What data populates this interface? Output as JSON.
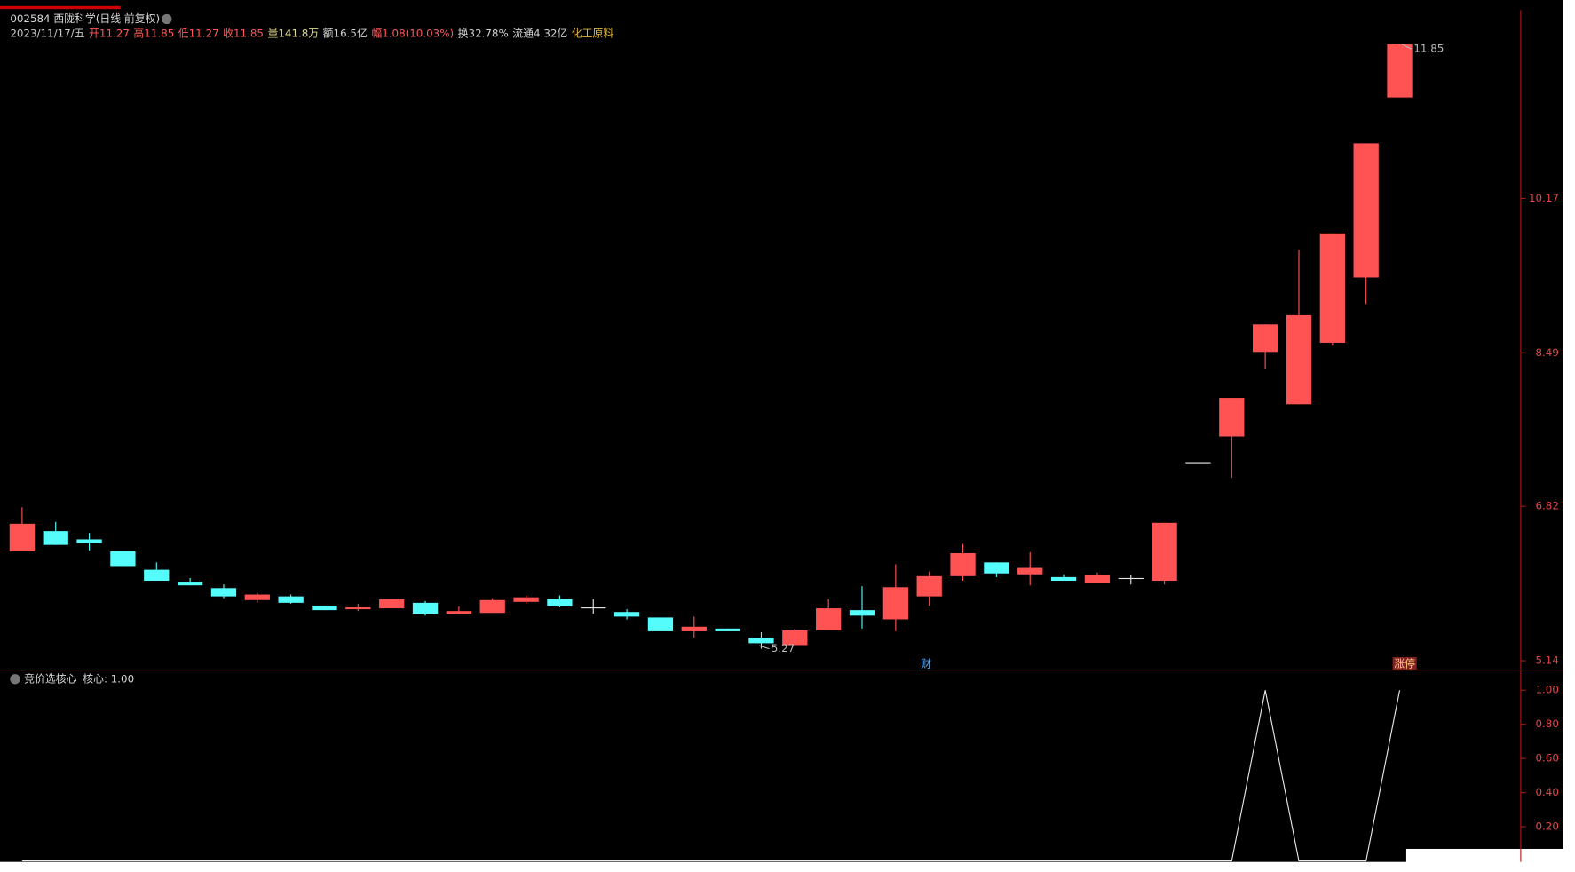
{
  "chart_data": [
    {
      "type": "candlestick",
      "title": "002584 西陇科学(日线 前复权)",
      "info": [
        {
          "text": "2023/11/17/五",
          "color": "#c8c8c8"
        },
        {
          "label": "开",
          "value": 11.27,
          "color": "#ff5a5a"
        },
        {
          "label": "高",
          "value": 11.85,
          "color": "#ff5a5a"
        },
        {
          "label": "低",
          "value": 11.27,
          "color": "#ff5a5a"
        },
        {
          "label": "收",
          "value": 11.85,
          "color": "#ff5a5a"
        },
        {
          "label": "量",
          "text": "141.8万",
          "color": "#e0d890"
        },
        {
          "label": "额",
          "text": "16.5亿",
          "color": "#d0d0d0"
        },
        {
          "label": "幅",
          "text": "1.08(10.03%)",
          "color": "#ff5a5a"
        },
        {
          "label": "换",
          "text": "32.78%",
          "color": "#d0d0d0"
        },
        {
          "label": "流通",
          "text": "4.32亿",
          "color": "#d0d0d0"
        },
        {
          "text": "化工原料",
          "color": "#e0b840"
        }
      ],
      "open": [
        6.33,
        6.55,
        6.46,
        6.33,
        6.13,
        6.0,
        5.93,
        5.8,
        5.84,
        5.74,
        5.7,
        5.71,
        5.77,
        5.65,
        5.66,
        5.78,
        5.81,
        5.72,
        5.67,
        5.61,
        5.46,
        5.49,
        5.39,
        5.31,
        5.47,
        5.69,
        5.59,
        5.84,
        6.06,
        6.21,
        6.08,
        6.05,
        5.99,
        6.04,
        6.01,
        7.3,
        7.58,
        8.5,
        7.93,
        8.6,
        9.31,
        11.27
      ],
      "high": [
        6.81,
        6.65,
        6.53,
        6.33,
        6.21,
        6.04,
        5.97,
        5.88,
        5.86,
        5.74,
        5.76,
        5.81,
        5.79,
        5.73,
        5.82,
        5.85,
        5.85,
        5.81,
        5.7,
        5.61,
        5.62,
        5.49,
        5.45,
        5.49,
        5.81,
        5.95,
        6.19,
        6.11,
        6.41,
        6.21,
        6.32,
        6.08,
        6.1,
        6.07,
        6.64,
        7.3,
        8.0,
        8.8,
        9.61,
        9.79,
        10.77,
        11.85
      ],
      "low": [
        6.33,
        6.4,
        6.34,
        6.17,
        6.01,
        5.96,
        5.82,
        5.77,
        5.76,
        5.69,
        5.68,
        5.71,
        5.63,
        5.65,
        5.66,
        5.76,
        5.72,
        5.65,
        5.59,
        5.46,
        5.39,
        5.46,
        5.27,
        5.31,
        5.47,
        5.49,
        5.46,
        5.74,
        6.01,
        6.05,
        5.96,
        6.01,
        5.99,
        5.97,
        5.97,
        7.3,
        7.13,
        8.31,
        7.93,
        8.57,
        9.02,
        11.27
      ],
      "close": [
        6.63,
        6.4,
        6.42,
        6.17,
        6.01,
        5.96,
        5.84,
        5.86,
        5.77,
        5.69,
        5.72,
        5.81,
        5.65,
        5.68,
        5.8,
        5.83,
        5.73,
        5.72,
        5.62,
        5.46,
        5.51,
        5.46,
        5.33,
        5.47,
        5.71,
        5.63,
        5.94,
        6.06,
        6.31,
        6.09,
        6.15,
        6.01,
        6.07,
        6.04,
        6.64,
        7.3,
        8.0,
        8.8,
        8.9,
        9.79,
        10.77,
        11.85
      ],
      "up_color": "#ff5252",
      "down_color": "#54fcfc",
      "flat_color": "#e8e8e8",
      "ylim": [
        5.06,
        12.22
      ],
      "yticks": [
        5.14,
        6.82,
        8.49,
        10.17
      ],
      "high_label": 11.85,
      "low_label": 5.27,
      "tags": [
        "财",
        "涨停"
      ]
    },
    {
      "type": "line",
      "title": "竞价选核心",
      "series": [
        {
          "name": "核心: 1.00",
          "color": "#e8e8e8",
          "values": [
            0,
            0,
            0,
            0,
            0,
            0,
            0,
            0,
            0,
            0,
            0,
            0,
            0,
            0,
            0,
            0,
            0,
            0,
            0,
            0,
            0,
            0,
            0,
            0,
            0,
            0,
            0,
            0,
            0,
            0,
            0,
            0,
            0,
            0,
            0,
            0,
            0,
            1,
            0,
            0,
            0,
            1
          ]
        }
      ],
      "ylim": [
        0,
        1.1
      ],
      "yticks": [
        {
          "value": 0.2,
          "label": "0.20"
        },
        {
          "value": 0.4,
          "label": "0.40"
        },
        {
          "value": 0.6,
          "label": "0.60"
        },
        {
          "value": 0.8,
          "label": "0.80"
        },
        {
          "value": 1,
          "label": "1.00"
        }
      ]
    }
  ]
}
